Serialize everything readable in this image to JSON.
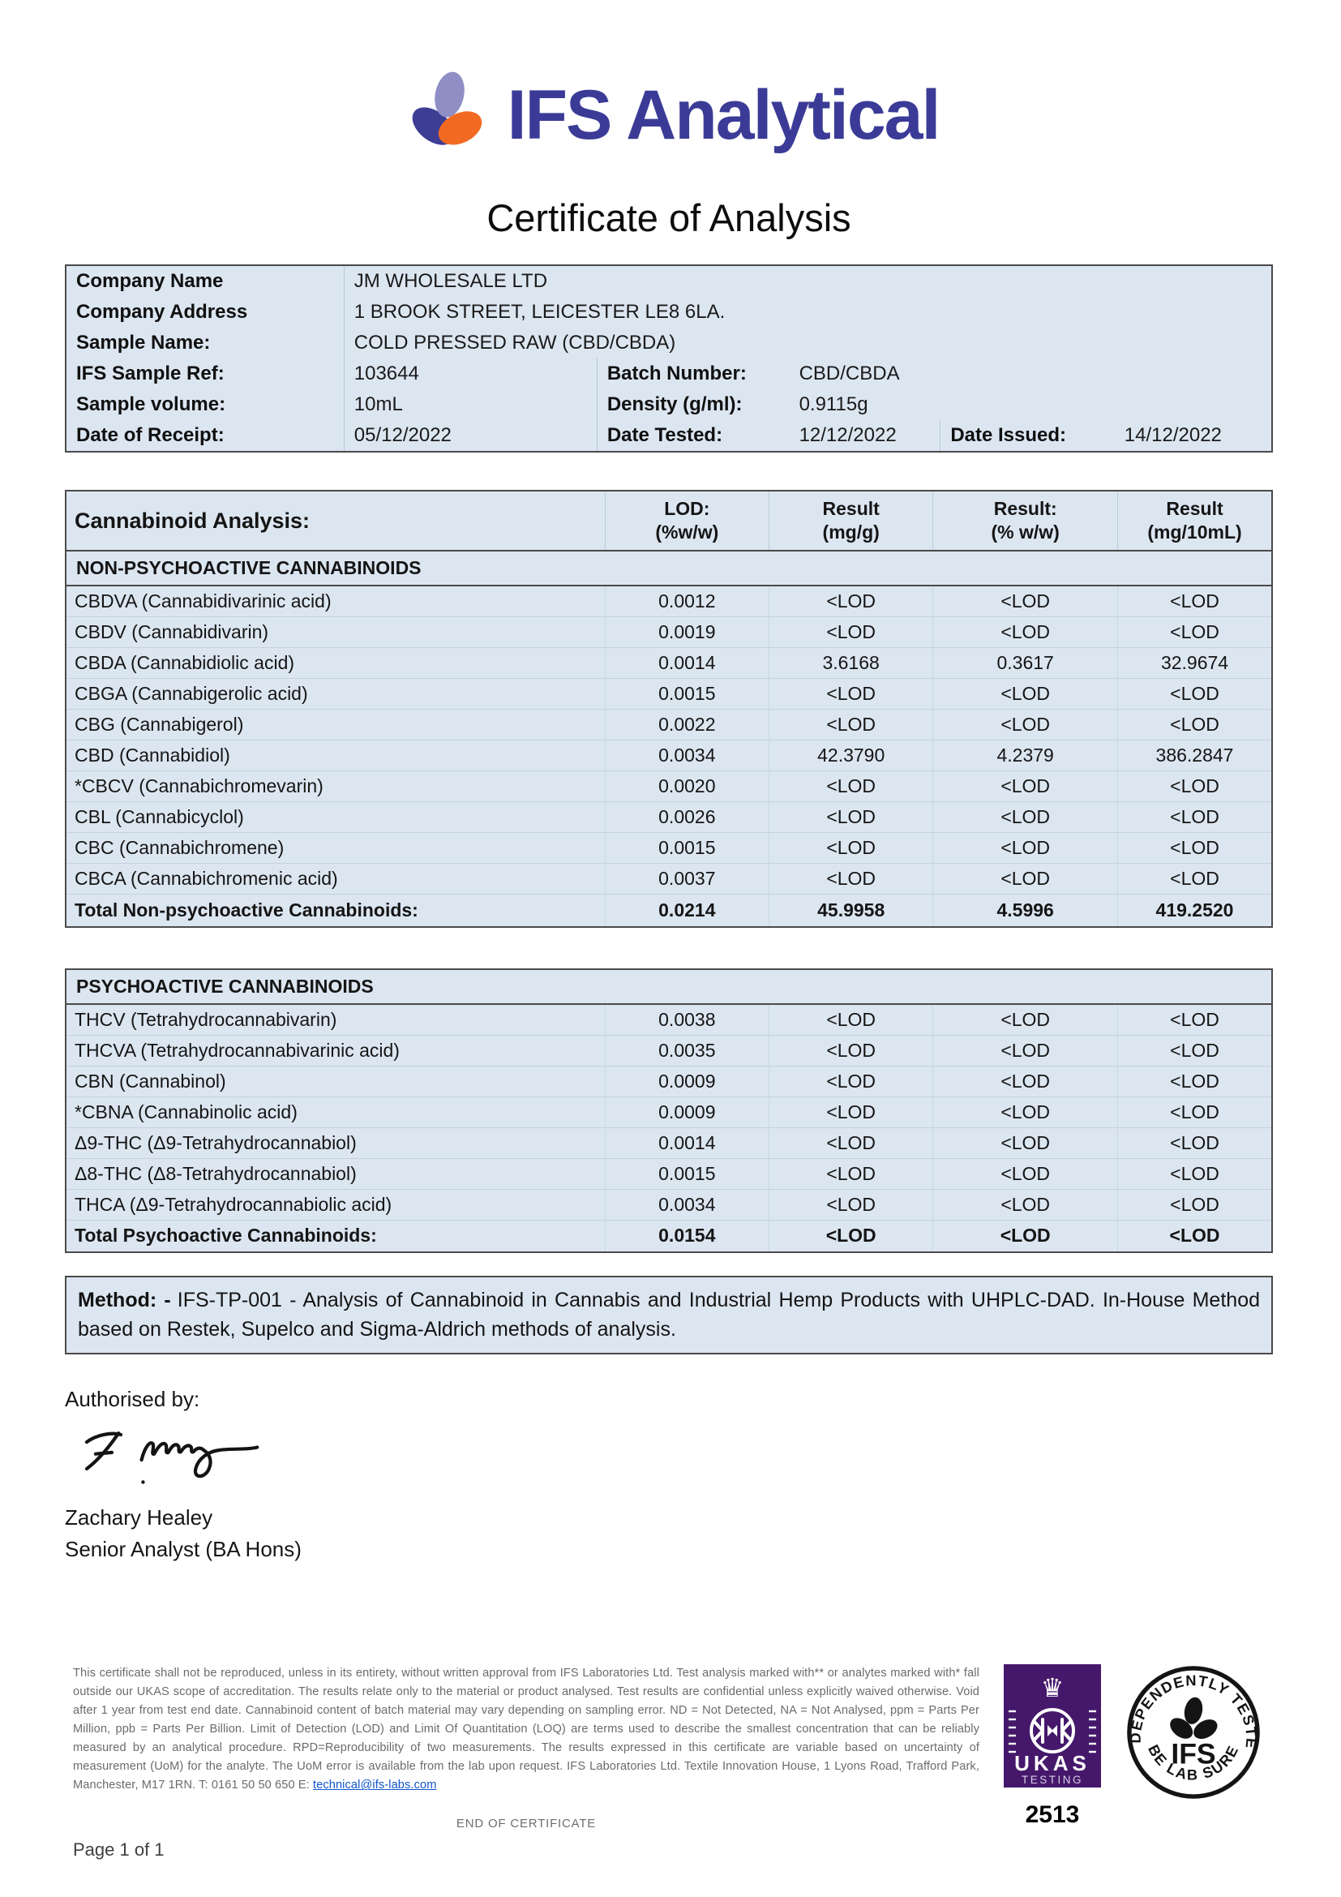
{
  "brand": {
    "name": "IFS Analytical",
    "colors": {
      "indigo": "#3b3b97",
      "lavender": "#8f8fc6",
      "orange": "#f26a21"
    }
  },
  "title": "Certificate of Analysis",
  "info": {
    "company_name_label": "Company Name",
    "company_name": "JM WHOLESALE LTD",
    "company_address_label": "Company Address",
    "company_address": "1 BROOK STREET, LEICESTER LE8 6LA.",
    "sample_name_label": "Sample Name:",
    "sample_name": "COLD PRESSED RAW (CBD/CBDA)",
    "sample_ref_label": "IFS Sample Ref:",
    "sample_ref": "103644",
    "batch_label": "Batch Number:",
    "batch": "CBD/CBDA",
    "volume_label": "Sample volume:",
    "volume": "10mL",
    "density_label": "Density (g/ml):",
    "density": "0.9115g",
    "receipt_label": "Date of Receipt:",
    "receipt": "05/12/2022",
    "tested_label": "Date Tested:",
    "tested": "12/12/2022",
    "issued_label": "Date Issued:",
    "issued": "14/12/2022"
  },
  "analysis": {
    "title": "Cannabinoid Analysis:",
    "columns": [
      {
        "l1": "LOD:",
        "l2": "(%w/w)"
      },
      {
        "l1": "Result",
        "l2": "(mg/g)"
      },
      {
        "l1": "Result:",
        "l2": "(% w/w)"
      },
      {
        "l1": "Result",
        "l2": "(mg/10mL)"
      }
    ],
    "sections": [
      {
        "name": "NON-PSYCHOACTIVE CANNABINOIDS",
        "rows": [
          {
            "name": "CBDVA (Cannabidivarinic acid)",
            "lod": "0.0012",
            "mg_g": "<LOD",
            "pct": "<LOD",
            "mg_10ml": "<LOD"
          },
          {
            "name": "CBDV (Cannabidivarin)",
            "lod": "0.0019",
            "mg_g": "<LOD",
            "pct": "<LOD",
            "mg_10ml": "<LOD"
          },
          {
            "name": "CBDA (Cannabidiolic acid)",
            "lod": "0.0014",
            "mg_g": "3.6168",
            "pct": "0.3617",
            "mg_10ml": "32.9674"
          },
          {
            "name": "CBGA (Cannabigerolic acid)",
            "lod": "0.0015",
            "mg_g": "<LOD",
            "pct": "<LOD",
            "mg_10ml": "<LOD"
          },
          {
            "name": "CBG (Cannabigerol)",
            "lod": "0.0022",
            "mg_g": "<LOD",
            "pct": "<LOD",
            "mg_10ml": "<LOD"
          },
          {
            "name": "CBD (Cannabidiol)",
            "lod": "0.0034",
            "mg_g": "42.3790",
            "pct": "4.2379",
            "mg_10ml": "386.2847"
          },
          {
            "name": "*CBCV (Cannabichromevarin)",
            "lod": "0.0020",
            "mg_g": "<LOD",
            "pct": "<LOD",
            "mg_10ml": "<LOD"
          },
          {
            "name": "CBL (Cannabicyclol)",
            "lod": "0.0026",
            "mg_g": "<LOD",
            "pct": "<LOD",
            "mg_10ml": "<LOD"
          },
          {
            "name": "CBC (Cannabichromene)",
            "lod": "0.0015",
            "mg_g": "<LOD",
            "pct": "<LOD",
            "mg_10ml": "<LOD"
          },
          {
            "name": "CBCA (Cannabichromenic acid)",
            "lod": "0.0037",
            "mg_g": "<LOD",
            "pct": "<LOD",
            "mg_10ml": "<LOD"
          }
        ],
        "total": {
          "name": "Total Non-psychoactive Cannabinoids:",
          "lod": "0.0214",
          "mg_g": "45.9958",
          "pct": "4.5996",
          "mg_10ml": "419.2520"
        }
      },
      {
        "name": "PSYCHOACTIVE CANNABINOIDS",
        "rows": [
          {
            "name": "THCV (Tetrahydrocannabivarin)",
            "lod": "0.0038",
            "mg_g": "<LOD",
            "pct": "<LOD",
            "mg_10ml": "<LOD"
          },
          {
            "name": "THCVA (Tetrahydrocannabivarinic acid)",
            "lod": "0.0035",
            "mg_g": "<LOD",
            "pct": "<LOD",
            "mg_10ml": "<LOD"
          },
          {
            "name": "CBN (Cannabinol)",
            "lod": "0.0009",
            "mg_g": "<LOD",
            "pct": "<LOD",
            "mg_10ml": "<LOD"
          },
          {
            "name": "*CBNA (Cannabinolic acid)",
            "lod": "0.0009",
            "mg_g": "<LOD",
            "pct": "<LOD",
            "mg_10ml": "<LOD"
          },
          {
            "name": "Δ9-THC (Δ9-Tetrahydrocannabiol)",
            "lod": "0.0014",
            "mg_g": "<LOD",
            "pct": "<LOD",
            "mg_10ml": "<LOD"
          },
          {
            "name": "Δ8-THC (Δ8-Tetrahydrocannabiol)",
            "lod": "0.0015",
            "mg_g": "<LOD",
            "pct": "<LOD",
            "mg_10ml": "<LOD"
          },
          {
            "name": "THCA (Δ9-Tetrahydrocannabiolic acid)",
            "lod": "0.0034",
            "mg_g": "<LOD",
            "pct": "<LOD",
            "mg_10ml": "<LOD"
          }
        ],
        "total": {
          "name": "Total Psychoactive Cannabinoids:",
          "lod": "0.0154",
          "mg_g": "<LOD",
          "pct": "<LOD",
          "mg_10ml": "<LOD"
        }
      }
    ]
  },
  "method": {
    "label": "Method: -",
    "text": "IFS-TP-001 - Analysis of Cannabinoid in Cannabis and Industrial Hemp Products with UHPLC-DAD. In-House Method based on Restek, Supelco and Sigma-Aldrich methods of analysis."
  },
  "authorised": {
    "label": "Authorised by:",
    "name": "Zachary Healey",
    "role": "Senior Analyst (BA Hons)"
  },
  "footer": {
    "disclaimer_before_email": "This certificate shall not be reproduced, unless in its entirety, without written approval from IFS Laboratories Ltd. Test analysis marked with** or analytes marked with* fall outside our UKAS scope of accreditation.  The results relate only to the material or product analysed. Test results are confidential unless explicitly waived otherwise. Void after 1 year from test end date. Cannabinoid content of batch material may vary depending on sampling error. ND = Not Detected, NA = Not Analysed, ppm = Parts Per Million, ppb = Parts Per Billion. Limit of Detection (LOD) and Limit Of Quantitation (LOQ) are terms used to describe the smallest concentration that can be reliably measured by an analytical procedure. RPD=Reproducibility of two measurements. The results expressed in this certificate are variable based on uncertainty of measurement (UoM) for the analyte. The UoM error is available from the lab upon request. IFS Laboratories Ltd. Textile Innovation House, 1 Lyons Road, Trafford Park, Manchester, M17 1RN. T: 0161 50 50 650 E: ",
    "email": "technical@ifs-labs.com",
    "ukas_label": "UKAS",
    "ukas_sub": "TESTING",
    "ukas_number": "2513",
    "stamp_top": "INDEPENDENTLY TESTED",
    "stamp_bottom": "BE LAB SURE",
    "stamp_center": "IFS",
    "end_text": "END OF CERTIFICATE",
    "page": "Page 1 of 1"
  }
}
